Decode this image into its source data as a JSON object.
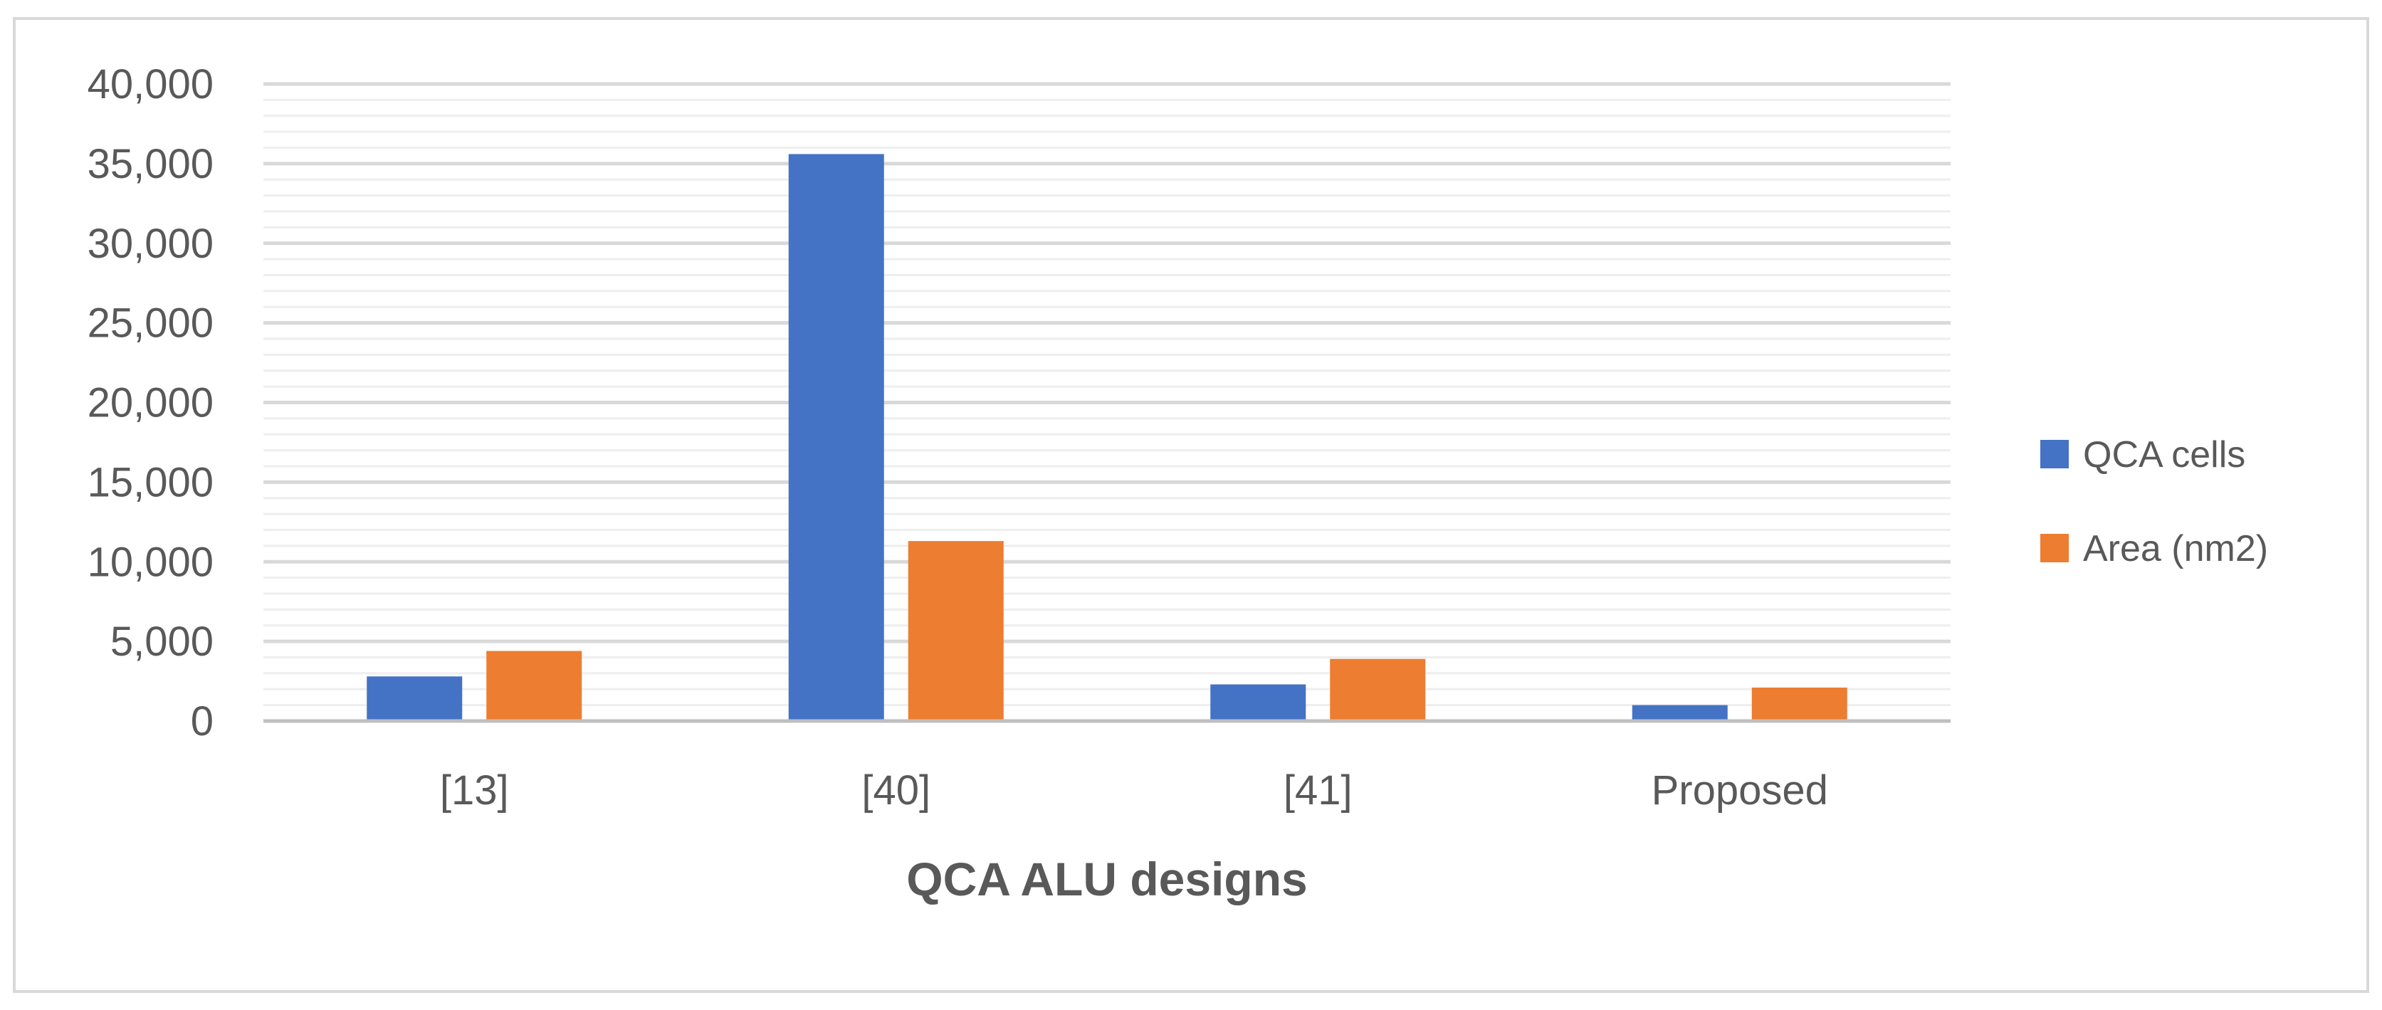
{
  "chart_data": {
    "type": "bar",
    "title": "",
    "xlabel": "QCA ALU designs",
    "ylabel": "",
    "categories": [
      "[13]",
      "[40]",
      "[41]",
      "Proposed"
    ],
    "series": [
      {
        "name": "QCA cells",
        "color": "#4472c4",
        "values": [
          2800,
          35600,
          2300,
          1000
        ]
      },
      {
        "name": "Area (nm2)",
        "color": "#ed7d31",
        "values": [
          4400,
          11300,
          3900,
          2100
        ]
      }
    ],
    "ylim": [
      0,
      40000
    ],
    "y_major_ticks": [
      0,
      5000,
      10000,
      15000,
      20000,
      25000,
      30000,
      35000,
      40000
    ],
    "y_tick_labels": [
      "0",
      "5,000",
      "10,000",
      "15,000",
      "20,000",
      "25,000",
      "30,000",
      "35,000",
      "40,000"
    ],
    "y_minor_step": 1000,
    "grid": true,
    "legend_position": "right"
  }
}
